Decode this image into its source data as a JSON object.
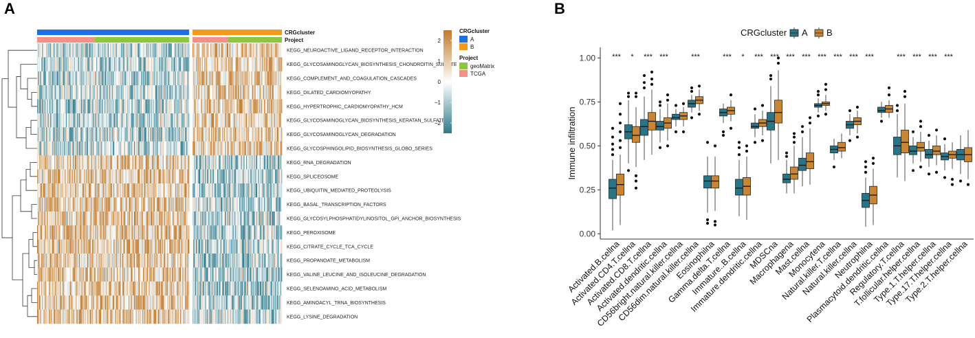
{
  "figure": {
    "panel_a_label": "A",
    "panel_b_label": "B"
  },
  "chart_data": [
    {
      "type": "heatmap",
      "annotation_labels": [
        "CRGcluster",
        "Project"
      ],
      "rows": [
        "KEGG_NEUROACTIVE_LIGAND_RECEPTOR_INTERACTION",
        "KEGG_GLYCOSAMINOGLYCAN_BIOSYNTHESIS_CHONDROITIN_SULFATE",
        "KEGG_COMPLEMENT_AND_COAGULATION_CASCADES",
        "KEGG_DILATED_CARDIOMYOPATHY",
        "KEGG_HYPERTROPHIC_CARDIOMYOPATHY_HCM",
        "KEGG_GLYCOSAMINOGLYCAN_BIOSYNTHESIS_KERATAN_SULFATE",
        "KEGG_GLYCOSAMINOGLYCAN_DEGRADATION",
        "KEGG_GLYCOSPHINGOLIPID_BIOSYNTHESIS_GLOBO_SERIES",
        "KEGG_RNA_DEGRADATION",
        "KEGG_SPLICEOSOME",
        "KEGG_UBIQUITIN_MEDIATED_PROTEOLYSIS",
        "KEGG_BASAL_TRANSCRIPTION_FACTORS",
        "KEGG_GLYCOSYLPHOSPHATIDYLINOSITOL_GPI_ANCHOR_BIOSYNTHESIS",
        "KEGG_PEROXISOME",
        "KEGG_CITRATE_CYCLE_TCA_CYCLE",
        "KEGG_PROPANOATE_METABOLISM",
        "KEGG_VALINE_LEUCINE_AND_ISOLEUCINE_DEGRADATION",
        "KEGG_SELENOAMINO_ACID_METABOLISM",
        "KEGG_AMINOACYL_TRNA_BIOSYNTHESIS",
        "KEGG_LYSINE_DEGRADATION"
      ],
      "row_group_means": {
        "cluster_A": [
          -0.7,
          -0.7,
          -0.7,
          -0.7,
          -0.7,
          -0.7,
          -0.7,
          -0.7,
          0.9,
          0.9,
          0.9,
          0.9,
          0.9,
          0.9,
          0.9,
          0.9,
          0.9,
          0.9,
          0.9,
          0.9
        ],
        "cluster_B": [
          0.9,
          0.9,
          0.9,
          0.9,
          0.9,
          0.9,
          0.9,
          0.9,
          -0.8,
          -0.8,
          -0.8,
          -0.8,
          -0.8,
          -0.8,
          -0.8,
          -0.8,
          -0.8,
          -0.8,
          -0.8,
          -0.8
        ]
      },
      "columns": {
        "cluster_A_samples": 185,
        "cluster_B_samples": 105,
        "cluster_A_project": [
          {
            "project": "TCGA",
            "samples": 70
          },
          {
            "project": "geoMatrix",
            "samples": 115
          }
        ],
        "cluster_B_project": [
          {
            "project": "TCGA",
            "samples": 42
          },
          {
            "project": "geoMatrix",
            "samples": 63
          }
        ]
      },
      "color_scale": {
        "ticks": [
          "2",
          "1",
          "0",
          "−1",
          "−2"
        ],
        "low": "#2e7a8c",
        "mid": "#ffffff",
        "high": "#c07a2c",
        "range": [
          -2.5,
          2.5
        ]
      },
      "legends": {
        "crg": {
          "title": "CRGcluster",
          "items": [
            {
              "label": "A",
              "color": "#1f6fe0"
            },
            {
              "label": "B",
              "color": "#f39a1c"
            }
          ]
        },
        "project": {
          "title": "Project",
          "items": [
            {
              "label": "geoMatrix",
              "color": "#8ec63f"
            },
            {
              "label": "TCGA",
              "color": "#f4908a"
            }
          ]
        }
      }
    },
    {
      "type": "box",
      "legend_title": "CRGcluster",
      "series": [
        {
          "name": "A",
          "color": "#2a7487"
        },
        {
          "name": "B",
          "color": "#c78536"
        }
      ],
      "ylabel": "Immune infiltration",
      "ylim": [
        -0.03,
        1.06
      ],
      "yticks": [
        "0.00",
        "0.25",
        "0.50",
        "0.75",
        "1.00"
      ],
      "categories": [
        {
          "name": "Activated.B.cellna",
          "sig": "***",
          "A": {
            "q1": 0.2,
            "med": 0.26,
            "q3": 0.31,
            "lw": 0.02,
            "hw": 0.42,
            "out": [
              0.45,
              0.48,
              0.51,
              0.55,
              0.6
            ]
          },
          "B": {
            "q1": 0.22,
            "med": 0.28,
            "q3": 0.34,
            "lw": 0.05,
            "hw": 0.45,
            "out": [
              0.49,
              0.53,
              0.58,
              0.63,
              0.68,
              0.74
            ]
          }
        },
        {
          "name": "Activated.CD4.T.cellna",
          "sig": "*",
          "A": {
            "q1": 0.54,
            "med": 0.58,
            "q3": 0.62,
            "lw": 0.4,
            "hw": 0.76,
            "out": [
              0.36,
              0.78,
              0.8
            ]
          },
          "B": {
            "q1": 0.52,
            "med": 0.56,
            "q3": 0.61,
            "lw": 0.38,
            "hw": 0.72,
            "out": [
              0.3,
              0.26,
              0.33,
              0.78,
              0.8
            ]
          }
        },
        {
          "name": "Activated.CD8.T.cellna",
          "sig": "***",
          "A": {
            "q1": 0.56,
            "med": 0.61,
            "q3": 0.65,
            "lw": 0.42,
            "hw": 0.78,
            "out": [
              0.83,
              0.86,
              0.9
            ]
          },
          "B": {
            "q1": 0.59,
            "med": 0.64,
            "q3": 0.69,
            "lw": 0.45,
            "hw": 0.82,
            "out": [
              0.85,
              0.88,
              0.92
            ]
          }
        },
        {
          "name": "Activated.dendritic.cellna",
          "sig": "***",
          "A": {
            "q1": 0.59,
            "med": 0.61,
            "q3": 0.64,
            "lw": 0.52,
            "hw": 0.71,
            "out": [
              0.49,
              0.73,
              0.75
            ]
          },
          "B": {
            "q1": 0.6,
            "med": 0.63,
            "q3": 0.66,
            "lw": 0.53,
            "hw": 0.74,
            "out": [
              0.5,
              0.76,
              0.79
            ]
          }
        },
        {
          "name": "CD56bright.natural.killer.cellna",
          "sig": "",
          "A": {
            "q1": 0.65,
            "med": 0.66,
            "q3": 0.68,
            "lw": 0.61,
            "hw": 0.71,
            "out": [
              0.58,
              0.73
            ]
          },
          "B": {
            "q1": 0.65,
            "med": 0.67,
            "q3": 0.69,
            "lw": 0.61,
            "hw": 0.72,
            "out": [
              0.58,
              0.74
            ]
          }
        },
        {
          "name": "CD56dim.natural.killer.cellna",
          "sig": "***",
          "A": {
            "q1": 0.72,
            "med": 0.74,
            "q3": 0.76,
            "lw": 0.69,
            "hw": 0.79,
            "out": [
              0.66,
              0.81,
              0.83
            ]
          },
          "B": {
            "q1": 0.74,
            "med": 0.76,
            "q3": 0.78,
            "lw": 0.7,
            "hw": 0.82,
            "out": [
              0.68,
              0.84
            ]
          }
        },
        {
          "name": "Eosinophilna",
          "sig": "",
          "A": {
            "q1": 0.26,
            "med": 0.3,
            "q3": 0.33,
            "lw": 0.12,
            "hw": 0.44,
            "out": [
              0.06,
              0.08,
              0.52
            ]
          },
          "B": {
            "q1": 0.26,
            "med": 0.3,
            "q3": 0.33,
            "lw": 0.13,
            "hw": 0.44,
            "out": [
              0.05,
              0.07,
              0.5
            ]
          }
        },
        {
          "name": "Gamma.delta.T.cellna",
          "sig": "***",
          "A": {
            "q1": 0.67,
            "med": 0.69,
            "q3": 0.71,
            "lw": 0.63,
            "hw": 0.74,
            "out": [
              0.58,
              0.56
            ]
          },
          "B": {
            "q1": 0.68,
            "med": 0.7,
            "q3": 0.72,
            "lw": 0.64,
            "hw": 0.76,
            "out": [
              0.6,
              0.79
            ]
          }
        },
        {
          "name": "Immature..B.cellna",
          "sig": "*",
          "A": {
            "q1": 0.22,
            "med": 0.26,
            "q3": 0.31,
            "lw": 0.1,
            "hw": 0.42,
            "out": [
              0.45,
              0.49,
              0.52
            ]
          },
          "B": {
            "q1": 0.22,
            "med": 0.27,
            "q3": 0.32,
            "lw": 0.08,
            "hw": 0.44,
            "out": [
              0.47,
              0.5
            ]
          }
        },
        {
          "name": "Immature.dendritic.cellna",
          "sig": "***",
          "A": {
            "q1": 0.6,
            "med": 0.61,
            "q3": 0.63,
            "lw": 0.55,
            "hw": 0.68,
            "out": [
              0.52,
              0.71
            ]
          },
          "B": {
            "q1": 0.61,
            "med": 0.63,
            "q3": 0.65,
            "lw": 0.56,
            "hw": 0.7,
            "out": [
              0.53,
              0.73
            ]
          }
        },
        {
          "name": "MDSCna",
          "sig": "***",
          "A": {
            "q1": 0.59,
            "med": 0.64,
            "q3": 0.69,
            "lw": 0.4,
            "hw": 0.84,
            "out": [
              0.88,
              0.9
            ]
          },
          "B": {
            "q1": 0.63,
            "med": 0.69,
            "q3": 0.76,
            "lw": 0.42,
            "hw": 0.93,
            "out": [
              0.97,
              1.0
            ]
          }
        },
        {
          "name": "Macrophagena",
          "sig": "***",
          "A": {
            "q1": 0.29,
            "med": 0.31,
            "q3": 0.34,
            "lw": 0.23,
            "hw": 0.42,
            "out": [
              0.44,
              0.46
            ]
          },
          "B": {
            "q1": 0.31,
            "med": 0.34,
            "q3": 0.38,
            "lw": 0.23,
            "hw": 0.5,
            "out": [
              0.52,
              0.55,
              0.57
            ]
          }
        },
        {
          "name": "Mast.cellna",
          "sig": "***",
          "A": {
            "q1": 0.36,
            "med": 0.39,
            "q3": 0.43,
            "lw": 0.27,
            "hw": 0.55,
            "out": [
              0.58,
              0.61
            ]
          },
          "B": {
            "q1": 0.37,
            "med": 0.41,
            "q3": 0.46,
            "lw": 0.28,
            "hw": 0.6,
            "out": [
              0.63,
              0.66
            ]
          }
        },
        {
          "name": "Monocytena",
          "sig": "***",
          "A": {
            "q1": 0.72,
            "med": 0.73,
            "q3": 0.74,
            "lw": 0.69,
            "hw": 0.77,
            "out": [
              0.67,
              0.79,
              0.81
            ]
          },
          "B": {
            "q1": 0.73,
            "med": 0.74,
            "q3": 0.75,
            "lw": 0.7,
            "hw": 0.79,
            "out": [
              0.68,
              0.82,
              0.85
            ]
          }
        },
        {
          "name": "Natural.killer.T.cellna",
          "sig": "***",
          "A": {
            "q1": 0.46,
            "med": 0.48,
            "q3": 0.5,
            "lw": 0.42,
            "hw": 0.54,
            "out": [
              0.38
            ]
          },
          "B": {
            "q1": 0.47,
            "med": 0.49,
            "q3": 0.52,
            "lw": 0.43,
            "hw": 0.57,
            "out": []
          }
        },
        {
          "name": "Natural.killer.cellna",
          "sig": "***",
          "A": {
            "q1": 0.6,
            "med": 0.62,
            "q3": 0.64,
            "lw": 0.56,
            "hw": 0.68,
            "out": [
              0.53,
              0.7
            ]
          },
          "B": {
            "q1": 0.62,
            "med": 0.64,
            "q3": 0.66,
            "lw": 0.57,
            "hw": 0.7,
            "out": [
              0.55,
              0.72
            ]
          }
        },
        {
          "name": "Neutrophilna",
          "sig": "***",
          "A": {
            "q1": 0.15,
            "med": 0.19,
            "q3": 0.23,
            "lw": 0.04,
            "hw": 0.32,
            "out": [
              0.35,
              0.38,
              0.41
            ]
          },
          "B": {
            "q1": 0.17,
            "med": 0.22,
            "q3": 0.27,
            "lw": 0.05,
            "hw": 0.37,
            "out": [
              0.4,
              0.43
            ]
          }
        },
        {
          "name": "Plasmacytoid.dendritic.cellna",
          "sig": "",
          "A": {
            "q1": 0.69,
            "med": 0.7,
            "q3": 0.72,
            "lw": 0.66,
            "hw": 0.75,
            "out": [
              0.64
            ]
          },
          "B": {
            "q1": 0.69,
            "med": 0.71,
            "q3": 0.73,
            "lw": 0.66,
            "hw": 0.76,
            "out": [
              0.79,
              0.83
            ]
          }
        },
        {
          "name": "Regulatory.T.cellna",
          "sig": "***",
          "A": {
            "q1": 0.45,
            "med": 0.5,
            "q3": 0.55,
            "lw": 0.32,
            "hw": 0.68,
            "out": [
              0.7,
              0.73
            ]
          },
          "B": {
            "q1": 0.46,
            "med": 0.52,
            "q3": 0.59,
            "lw": 0.3,
            "hw": 0.74,
            "out": [
              0.78,
              0.81
            ]
          }
        },
        {
          "name": "T.follicular.helper.cellna",
          "sig": "***",
          "A": {
            "q1": 0.45,
            "med": 0.47,
            "q3": 0.5,
            "lw": 0.4,
            "hw": 0.55,
            "out": [
              0.36,
              0.58
            ]
          },
          "B": {
            "q1": 0.47,
            "med": 0.49,
            "q3": 0.52,
            "lw": 0.41,
            "hw": 0.58,
            "out": [
              0.38,
              0.61,
              0.64
            ]
          }
        },
        {
          "name": "Type.1.T.helper.cellna",
          "sig": "***",
          "A": {
            "q1": 0.43,
            "med": 0.45,
            "q3": 0.48,
            "lw": 0.38,
            "hw": 0.53,
            "out": [
              0.34,
              0.56
            ]
          },
          "B": {
            "q1": 0.45,
            "med": 0.47,
            "q3": 0.5,
            "lw": 0.39,
            "hw": 0.56,
            "out": [
              0.35,
              0.59
            ]
          }
        },
        {
          "name": "Type.17.T.helper.cellna",
          "sig": "***",
          "A": {
            "q1": 0.42,
            "med": 0.44,
            "q3": 0.46,
            "lw": 0.36,
            "hw": 0.51,
            "out": [
              0.32,
              0.54
            ]
          },
          "B": {
            "q1": 0.43,
            "med": 0.45,
            "q3": 0.47,
            "lw": 0.37,
            "hw": 0.52,
            "out": [
              0.31,
              0.28
            ]
          }
        },
        {
          "name": "Type.2.T.helper.cellna",
          "sig": "",
          "A": {
            "q1": 0.42,
            "med": 0.45,
            "q3": 0.48,
            "lw": 0.34,
            "hw": 0.56,
            "out": [
              0.3
            ]
          },
          "B": {
            "q1": 0.41,
            "med": 0.45,
            "q3": 0.49,
            "lw": 0.31,
            "hw": 0.59,
            "out": [
              0.28
            ]
          }
        }
      ]
    }
  ]
}
